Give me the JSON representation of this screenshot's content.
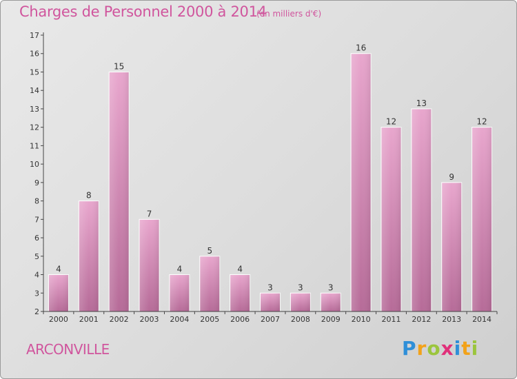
{
  "chart_data": {
    "type": "bar",
    "title": "Charges de Personnel 2000 à 2014",
    "subtitle": "(en milliers d'€)",
    "categories": [
      "2000",
      "2001",
      "2002",
      "2003",
      "2004",
      "2005",
      "2006",
      "2007",
      "2008",
      "2009",
      "2010",
      "2011",
      "2012",
      "2013",
      "2014"
    ],
    "values": [
      4,
      8,
      15,
      7,
      4,
      5,
      4,
      3,
      3,
      3,
      16,
      12,
      13,
      9,
      12
    ],
    "ylim": [
      2,
      17
    ],
    "yticks": [
      2,
      3,
      4,
      5,
      6,
      7,
      8,
      9,
      10,
      11,
      12,
      13,
      14,
      15,
      16,
      17
    ],
    "grid": false,
    "bar_color": "#d88fbb"
  },
  "footer": {
    "town": "ARCONVILLE",
    "logo_letters": [
      {
        "ch": "P",
        "color": "#2f8fd8"
      },
      {
        "ch": "r",
        "color": "#f2a21a"
      },
      {
        "ch": "o",
        "color": "#9bc53d"
      },
      {
        "ch": "x",
        "color": "#e0307a"
      },
      {
        "ch": "i",
        "color": "#2f8fd8"
      },
      {
        "ch": "t",
        "color": "#f2a21a"
      },
      {
        "ch": "i",
        "color": "#9bc53d"
      }
    ]
  }
}
